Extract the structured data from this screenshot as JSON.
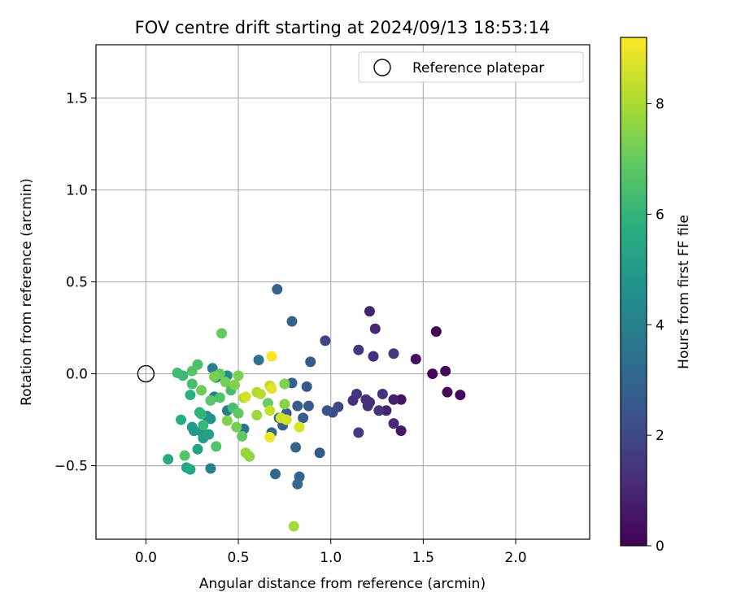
{
  "chart_data": {
    "type": "scatter",
    "title": "FOV centre drift starting at 2024/09/13 18:53:14",
    "xlabel": "Angular distance from reference (arcmin)",
    "ylabel": "Rotation from reference (arcmin)",
    "xlim": [
      -0.27,
      2.4
    ],
    "ylim": [
      -0.9,
      1.79
    ],
    "xticks": [
      0.0,
      0.5,
      1.0,
      1.5,
      2.0
    ],
    "xtick_labels": [
      "0.0",
      "0.5",
      "1.0",
      "1.5",
      "2.0"
    ],
    "yticks": [
      -0.5,
      0.0,
      0.5,
      1.0,
      1.5
    ],
    "ytick_labels": [
      "−0.5",
      "0.0",
      "0.5",
      "1.0",
      "1.5"
    ],
    "grid": true,
    "legend": {
      "placement": "top-right",
      "label": "Reference platepar"
    },
    "reference_point": {
      "x": 0.0,
      "y": 0.0
    },
    "colorbar": {
      "label": "Hours from first FF file",
      "colormap": "viridis",
      "range": [
        0,
        9.2
      ],
      "ticks": [
        0,
        2,
        4,
        6,
        8
      ],
      "tick_labels": [
        "0",
        "2",
        "4",
        "6",
        "8"
      ]
    },
    "points": [
      {
        "x": 1.57,
        "y": 0.23,
        "t": 0.1
      },
      {
        "x": 1.55,
        "y": 0.0,
        "t": 0.1
      },
      {
        "x": 1.62,
        "y": 0.015,
        "t": 0.15
      },
      {
        "x": 1.63,
        "y": -0.1,
        "t": 0.2
      },
      {
        "x": 1.7,
        "y": -0.115,
        "t": 0.2
      },
      {
        "x": 1.46,
        "y": 0.08,
        "t": 0.4
      },
      {
        "x": 1.38,
        "y": -0.14,
        "t": 0.5
      },
      {
        "x": 1.38,
        "y": -0.31,
        "t": 0.6
      },
      {
        "x": 1.34,
        "y": -0.14,
        "t": 0.8
      },
      {
        "x": 1.34,
        "y": -0.27,
        "t": 1.0
      },
      {
        "x": 1.3,
        "y": -0.2,
        "t": 0.9
      },
      {
        "x": 1.21,
        "y": 0.34,
        "t": 0.9
      },
      {
        "x": 1.24,
        "y": 0.245,
        "t": 1.0
      },
      {
        "x": 1.23,
        "y": 0.095,
        "t": 1.2
      },
      {
        "x": 1.15,
        "y": 0.13,
        "t": 1.4
      },
      {
        "x": 1.34,
        "y": 0.11,
        "t": 1.5
      },
      {
        "x": 1.28,
        "y": -0.11,
        "t": 1.3
      },
      {
        "x": 1.26,
        "y": -0.2,
        "t": 1.4
      },
      {
        "x": 1.21,
        "y": -0.155,
        "t": 1.1
      },
      {
        "x": 1.19,
        "y": -0.14,
        "t": 1.2
      },
      {
        "x": 1.2,
        "y": -0.175,
        "t": 1.3
      },
      {
        "x": 1.14,
        "y": -0.11,
        "t": 1.4
      },
      {
        "x": 1.12,
        "y": -0.145,
        "t": 1.2
      },
      {
        "x": 1.15,
        "y": -0.32,
        "t": 1.6
      },
      {
        "x": 0.97,
        "y": 0.18,
        "t": 1.9
      },
      {
        "x": 1.04,
        "y": -0.18,
        "t": 1.9
      },
      {
        "x": 1.01,
        "y": -0.21,
        "t": 2.1
      },
      {
        "x": 0.98,
        "y": -0.2,
        "t": 2.3
      },
      {
        "x": 0.94,
        "y": -0.43,
        "t": 2.6
      },
      {
        "x": 0.89,
        "y": 0.065,
        "t": 2.6
      },
      {
        "x": 0.87,
        "y": -0.07,
        "t": 2.6
      },
      {
        "x": 0.88,
        "y": -0.175,
        "t": 2.6
      },
      {
        "x": 0.85,
        "y": -0.24,
        "t": 2.7
      },
      {
        "x": 0.82,
        "y": -0.175,
        "t": 2.7
      },
      {
        "x": 0.79,
        "y": -0.05,
        "t": 2.8
      },
      {
        "x": 0.79,
        "y": 0.285,
        "t": 2.9
      },
      {
        "x": 0.71,
        "y": 0.46,
        "t": 2.9
      },
      {
        "x": 0.81,
        "y": -0.4,
        "t": 3.0
      },
      {
        "x": 0.83,
        "y": -0.56,
        "t": 3.0
      },
      {
        "x": 0.82,
        "y": -0.6,
        "t": 3.1
      },
      {
        "x": 0.7,
        "y": -0.545,
        "t": 3.0
      },
      {
        "x": 0.76,
        "y": -0.215,
        "t": 2.7
      },
      {
        "x": 0.74,
        "y": -0.28,
        "t": 2.8
      },
      {
        "x": 0.72,
        "y": -0.24,
        "t": 3.1
      },
      {
        "x": 0.68,
        "y": -0.32,
        "t": 3.1
      },
      {
        "x": 0.61,
        "y": 0.075,
        "t": 3.4
      },
      {
        "x": 0.53,
        "y": -0.3,
        "t": 3.5
      },
      {
        "x": 0.44,
        "y": -0.2,
        "t": 3.7
      },
      {
        "x": 0.36,
        "y": 0.03,
        "t": 3.9
      },
      {
        "x": 0.37,
        "y": -0.125,
        "t": 3.9
      },
      {
        "x": 0.35,
        "y": -0.515,
        "t": 4.0
      },
      {
        "x": 0.38,
        "y": -0.02,
        "t": 4.2
      },
      {
        "x": 0.44,
        "y": -0.01,
        "t": 4.4
      },
      {
        "x": 0.33,
        "y": -0.23,
        "t": 4.5
      },
      {
        "x": 0.35,
        "y": -0.245,
        "t": 4.7
      },
      {
        "x": 0.26,
        "y": -0.31,
        "t": 4.8
      },
      {
        "x": 0.25,
        "y": -0.29,
        "t": 4.9
      },
      {
        "x": 0.3,
        "y": -0.315,
        "t": 5.0
      },
      {
        "x": 0.31,
        "y": -0.35,
        "t": 5.1
      },
      {
        "x": 0.34,
        "y": -0.33,
        "t": 5.2
      },
      {
        "x": 0.28,
        "y": -0.41,
        "t": 5.3
      },
      {
        "x": 0.22,
        "y": -0.51,
        "t": 5.4
      },
      {
        "x": 0.24,
        "y": -0.52,
        "t": 5.5
      },
      {
        "x": 0.12,
        "y": -0.465,
        "t": 5.6
      },
      {
        "x": 0.19,
        "y": -0.25,
        "t": 5.7
      },
      {
        "x": 0.24,
        "y": -0.115,
        "t": 5.8
      },
      {
        "x": 0.29,
        "y": -0.21,
        "t": 5.9
      },
      {
        "x": 0.3,
        "y": -0.22,
        "t": 6.0
      },
      {
        "x": 0.31,
        "y": -0.28,
        "t": 6.1
      },
      {
        "x": 0.2,
        "y": -0.01,
        "t": 6.2
      },
      {
        "x": 0.17,
        "y": 0.005,
        "t": 6.3
      },
      {
        "x": 0.25,
        "y": -0.055,
        "t": 6.4
      },
      {
        "x": 0.28,
        "y": 0.05,
        "t": 6.5
      },
      {
        "x": 0.38,
        "y": -0.395,
        "t": 6.6
      },
      {
        "x": 0.21,
        "y": -0.445,
        "t": 6.7
      },
      {
        "x": 0.25,
        "y": 0.015,
        "t": 6.7
      },
      {
        "x": 0.35,
        "y": -0.145,
        "t": 6.8
      },
      {
        "x": 0.4,
        "y": -0.13,
        "t": 6.6
      },
      {
        "x": 0.47,
        "y": -0.185,
        "t": 6.5
      },
      {
        "x": 0.5,
        "y": -0.215,
        "t": 6.9
      },
      {
        "x": 0.46,
        "y": -0.09,
        "t": 6.4
      },
      {
        "x": 0.52,
        "y": -0.34,
        "t": 6.9
      },
      {
        "x": 0.4,
        "y": 0.0,
        "t": 7.0
      },
      {
        "x": 0.41,
        "y": 0.22,
        "t": 7.0
      },
      {
        "x": 0.3,
        "y": -0.09,
        "t": 7.1
      },
      {
        "x": 0.49,
        "y": -0.29,
        "t": 7.2
      },
      {
        "x": 0.43,
        "y": -0.045,
        "t": 7.2
      },
      {
        "x": 0.37,
        "y": -0.015,
        "t": 7.3
      },
      {
        "x": 0.5,
        "y": -0.01,
        "t": 7.3
      },
      {
        "x": 0.48,
        "y": -0.06,
        "t": 7.4
      },
      {
        "x": 0.44,
        "y": -0.255,
        "t": 7.4
      },
      {
        "x": 0.66,
        "y": -0.16,
        "t": 7.0
      },
      {
        "x": 0.75,
        "y": -0.055,
        "t": 7.4
      },
      {
        "x": 0.75,
        "y": -0.165,
        "t": 7.5
      },
      {
        "x": 0.56,
        "y": -0.45,
        "t": 7.6
      },
      {
        "x": 0.54,
        "y": -0.43,
        "t": 7.7
      },
      {
        "x": 0.6,
        "y": -0.225,
        "t": 7.8
      },
      {
        "x": 0.8,
        "y": -0.83,
        "t": 7.9
      },
      {
        "x": 0.53,
        "y": -0.13,
        "t": 8.0
      },
      {
        "x": 0.6,
        "y": -0.1,
        "t": 8.1
      },
      {
        "x": 0.62,
        "y": -0.11,
        "t": 8.2
      },
      {
        "x": 0.67,
        "y": -0.065,
        "t": 8.3
      },
      {
        "x": 0.67,
        "y": -0.2,
        "t": 8.4
      },
      {
        "x": 0.73,
        "y": -0.24,
        "t": 8.5
      },
      {
        "x": 0.76,
        "y": -0.25,
        "t": 8.6
      },
      {
        "x": 0.54,
        "y": -0.125,
        "t": 8.6
      },
      {
        "x": 0.83,
        "y": -0.29,
        "t": 8.7
      },
      {
        "x": 0.68,
        "y": -0.08,
        "t": 8.8
      },
      {
        "x": 0.67,
        "y": -0.345,
        "t": 9.0
      },
      {
        "x": 0.68,
        "y": 0.095,
        "t": 9.1
      }
    ]
  }
}
